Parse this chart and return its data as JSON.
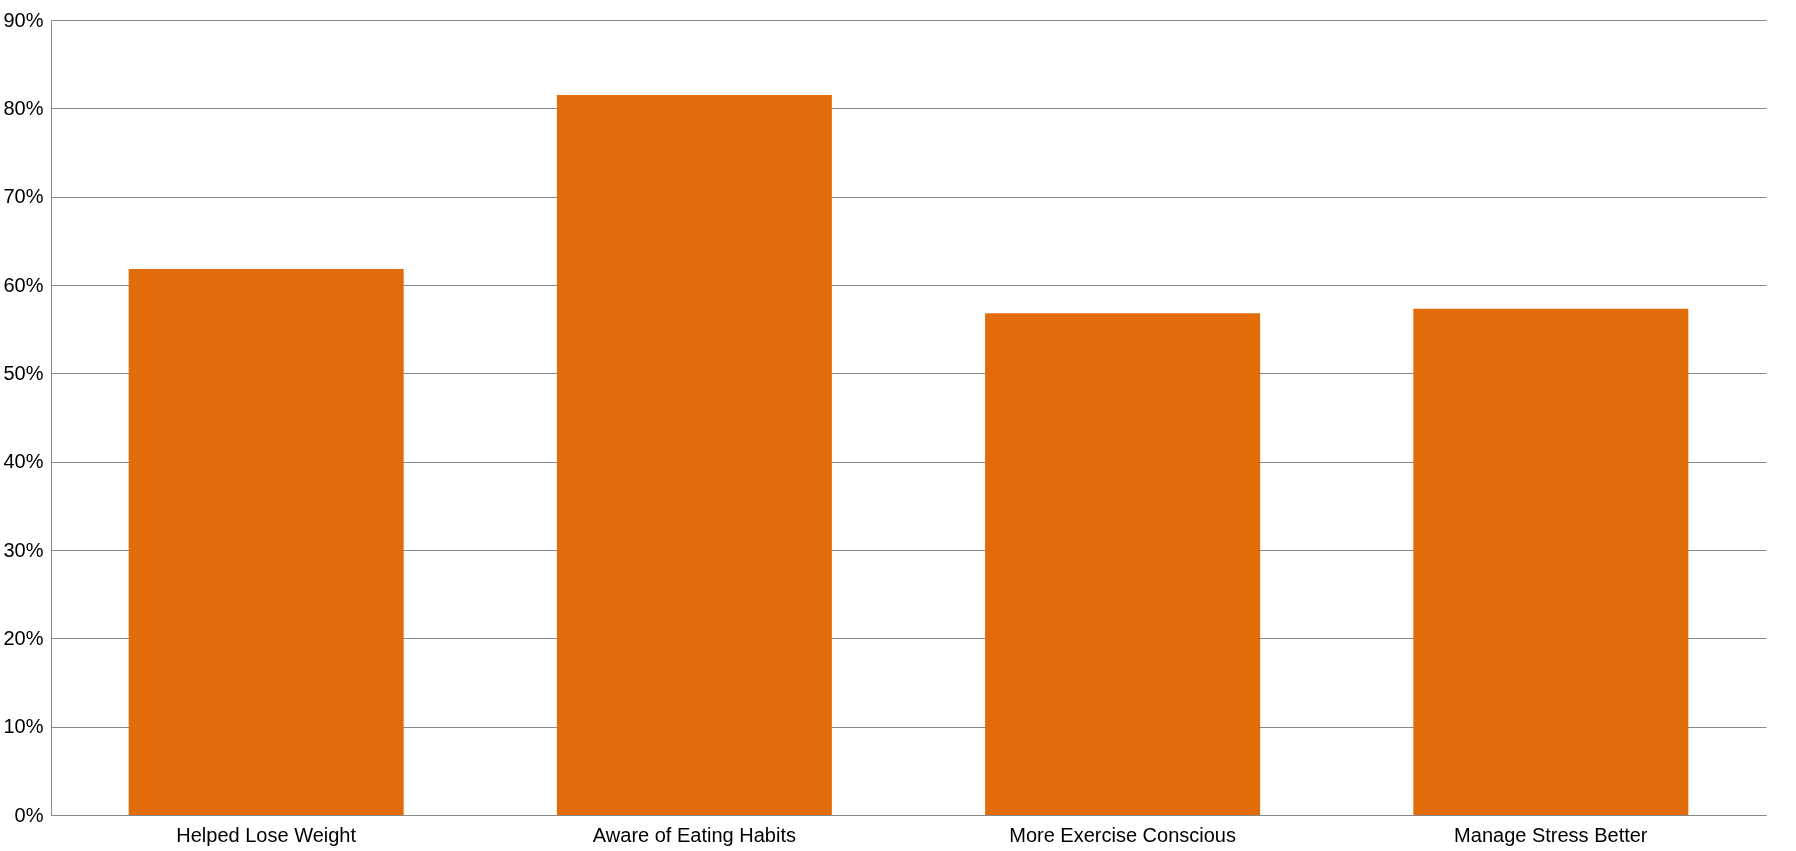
{
  "chart_data": {
    "type": "bar",
    "categories": [
      "Helped Lose Weight",
      "Aware of Eating Habits",
      "More Exercise Conscious",
      "Manage Stress Better"
    ],
    "values": [
      61.8,
      81.5,
      56.8,
      57.3
    ],
    "color": "#e36c0a",
    "ylim": [
      0,
      90
    ],
    "yticks": [
      {
        "value": 0,
        "label": "0%"
      },
      {
        "value": 10,
        "label": "10%"
      },
      {
        "value": 20,
        "label": "20%"
      },
      {
        "value": 30,
        "label": "30%"
      },
      {
        "value": 40,
        "label": "40%"
      },
      {
        "value": 50,
        "label": "50%"
      },
      {
        "value": 60,
        "label": "60%"
      },
      {
        "value": 70,
        "label": "70%"
      },
      {
        "value": 80,
        "label": "80%"
      },
      {
        "value": 90,
        "label": "90%"
      }
    ],
    "grid": "y"
  }
}
